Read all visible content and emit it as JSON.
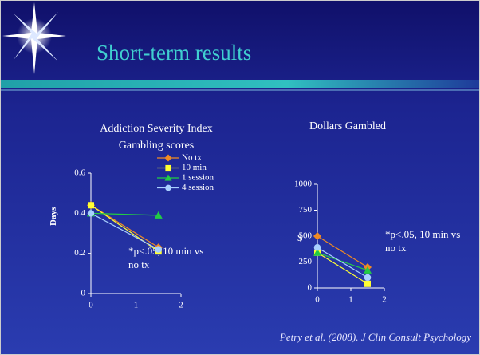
{
  "header": {
    "title": "Short-term results"
  },
  "chart_data": [
    {
      "type": "line",
      "title": "Addiction Severity Index Gambling scores",
      "ylabel": "Days",
      "x": [
        0,
        1.5
      ],
      "xlim": [
        0,
        2
      ],
      "xticks": [
        0,
        1,
        2
      ],
      "ylim": [
        0,
        0.6
      ],
      "yticks": [
        0,
        0.2,
        0.4,
        0.6
      ],
      "legend": "top-right",
      "annotation": "*p<.05, 10 min vs no tx",
      "series": [
        {
          "name": "No tx",
          "color": "#f08a24",
          "marker": "diamond",
          "values": [
            0.44,
            0.23
          ]
        },
        {
          "name": "10 min",
          "color": "#ffff33",
          "marker": "square",
          "values": [
            0.44,
            0.21
          ]
        },
        {
          "name": "1 session",
          "color": "#22cc44",
          "marker": "triangle",
          "values": [
            0.4,
            0.39
          ]
        },
        {
          "name": "4 session",
          "color": "#a8d0ff",
          "marker": "circle",
          "values": [
            0.4,
            0.22
          ]
        }
      ]
    },
    {
      "type": "line",
      "title": "Dollars Gambled",
      "ylabel": "$",
      "x": [
        0,
        1.5
      ],
      "xlim": [
        0,
        2
      ],
      "xticks": [
        0,
        1,
        2
      ],
      "ylim": [
        0,
        1000
      ],
      "yticks": [
        0,
        250,
        500,
        750,
        1000
      ],
      "annotation": "*p<.05, 10 min vs no tx",
      "series": [
        {
          "color": "#f08a24",
          "marker": "diamond",
          "values": [
            500,
            200
          ]
        },
        {
          "color": "#ffff33",
          "marker": "square",
          "values": [
            340,
            40
          ]
        },
        {
          "color": "#22cc44",
          "marker": "triangle",
          "values": [
            340,
            170
          ]
        },
        {
          "color": "#a8d0ff",
          "marker": "circle",
          "values": [
            390,
            100
          ]
        }
      ]
    }
  ],
  "footer": {
    "citation": "Petry et al. (2008). J Clin Consult Psychology"
  }
}
